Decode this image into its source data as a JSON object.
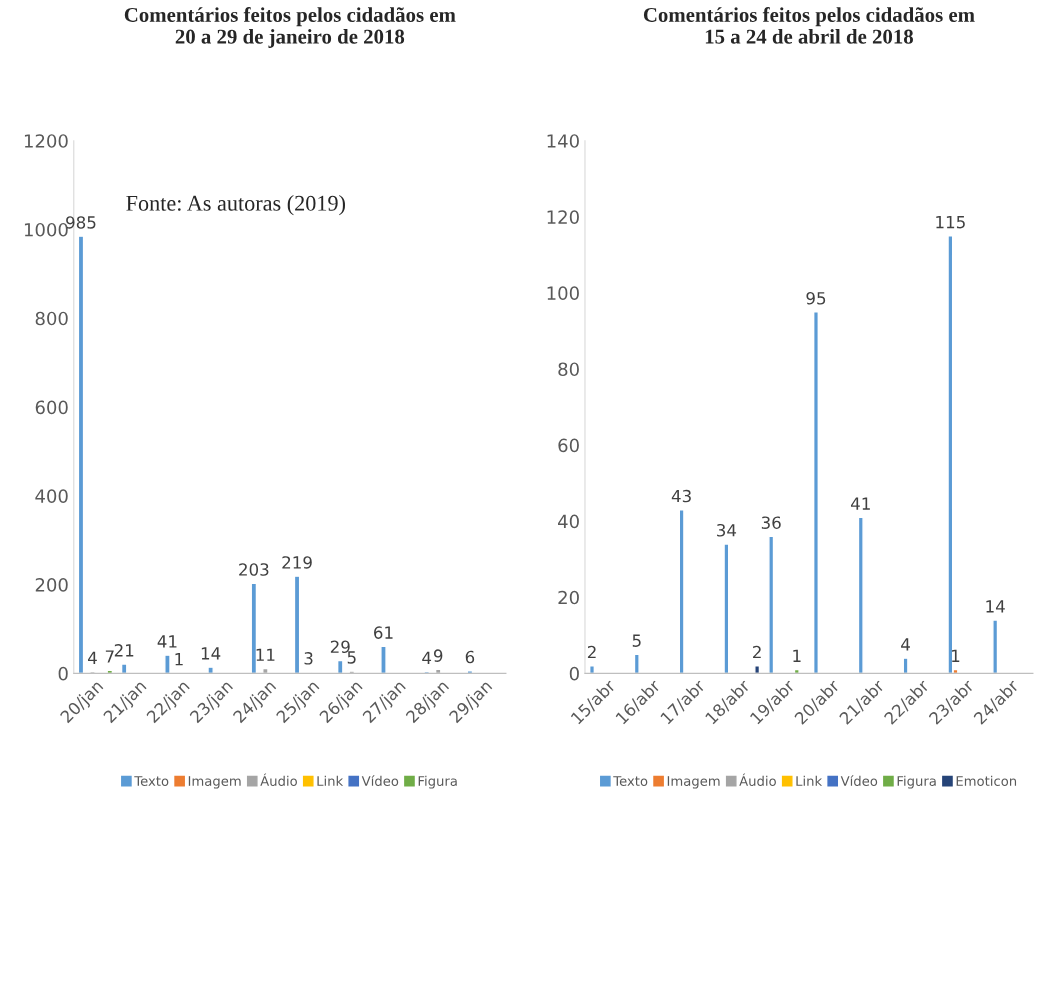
{
  "chart_data": [
    {
      "type": "bar",
      "title": "Comentários feitos pelos cidadãos em\n20 a 29 de janeiro de 2018",
      "categories": [
        "20/jan",
        "21/jan",
        "22/jan",
        "23/jan",
        "24/jan",
        "25/jan",
        "26/jan",
        "27/jan",
        "28/jan",
        "29/jan"
      ],
      "series": [
        {
          "name": "Texto",
          "color": "#5b9bd5",
          "values": [
            985,
            21,
            41,
            14,
            203,
            219,
            29,
            61,
            4,
            6
          ]
        },
        {
          "name": "Imagem",
          "color": "#ed7d31",
          "values": [
            null,
            null,
            null,
            null,
            null,
            null,
            null,
            null,
            null,
            null
          ]
        },
        {
          "name": "Áudio",
          "color": "#a5a5a5",
          "values": [
            4,
            null,
            1,
            null,
            11,
            3,
            5,
            null,
            9,
            null
          ]
        },
        {
          "name": "Link",
          "color": "#ffc000",
          "values": [
            null,
            null,
            null,
            null,
            null,
            null,
            null,
            null,
            null,
            null
          ]
        },
        {
          "name": "Vídeo",
          "color": "#4472c4",
          "values": [
            null,
            null,
            null,
            null,
            null,
            null,
            null,
            null,
            null,
            null
          ]
        },
        {
          "name": "Figura",
          "color": "#70ad47",
          "values": [
            7,
            null,
            null,
            null,
            null,
            null,
            null,
            null,
            null,
            null
          ]
        }
      ],
      "ylim": [
        0,
        1200
      ],
      "yticks": [
        0,
        200,
        400,
        600,
        800,
        1000,
        1200
      ],
      "data_labels": true,
      "legend": "bottom",
      "grid": false,
      "annotations": [
        "Fonte: As autoras (2019)"
      ]
    },
    {
      "type": "bar",
      "title": "Comentários feitos pelos cidadãos em\n15 a 24 de abril de 2018",
      "categories": [
        "15/abr",
        "16/abr",
        "17/abr",
        "18/abr",
        "19/abr",
        "20/abr",
        "21/abr",
        "22/abr",
        "23/abr",
        "24/abr"
      ],
      "series": [
        {
          "name": "Texto",
          "color": "#5b9bd5",
          "values": [
            2,
            5,
            43,
            34,
            36,
            95,
            41,
            4,
            115,
            14
          ]
        },
        {
          "name": "Imagem",
          "color": "#ed7d31",
          "values": [
            null,
            null,
            null,
            null,
            null,
            null,
            null,
            null,
            1,
            null
          ]
        },
        {
          "name": "Áudio",
          "color": "#a5a5a5",
          "values": [
            null,
            null,
            null,
            null,
            null,
            null,
            null,
            null,
            null,
            null
          ]
        },
        {
          "name": "Link",
          "color": "#ffc000",
          "values": [
            null,
            null,
            null,
            null,
            null,
            null,
            null,
            null,
            null,
            null
          ]
        },
        {
          "name": "Vídeo",
          "color": "#4472c4",
          "values": [
            null,
            null,
            null,
            null,
            null,
            null,
            null,
            null,
            null,
            null
          ]
        },
        {
          "name": "Figura",
          "color": "#70ad47",
          "values": [
            null,
            null,
            null,
            null,
            1,
            null,
            null,
            null,
            null,
            null
          ]
        },
        {
          "name": "Emoticon",
          "color": "#264478",
          "values": [
            null,
            null,
            null,
            2,
            null,
            null,
            null,
            null,
            null,
            null
          ]
        }
      ],
      "ylim": [
        0,
        140
      ],
      "yticks": [
        0,
        20,
        40,
        60,
        80,
        100,
        120,
        140
      ],
      "data_labels": true,
      "legend": "bottom",
      "grid": false
    }
  ]
}
